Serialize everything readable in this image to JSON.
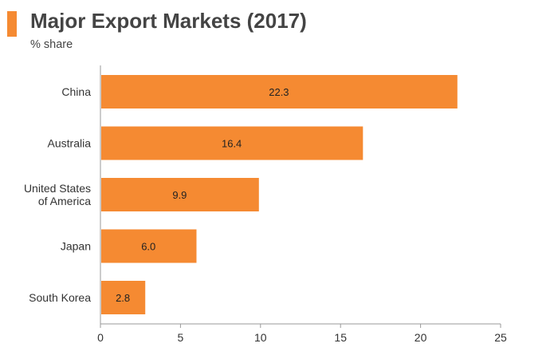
{
  "colors": {
    "accent": "#F58A32",
    "bar": "#F58A32",
    "axis": "#9a9a9a",
    "text": "#444444"
  },
  "header": {
    "title": "Major Export Markets (2017)",
    "subtitle": "% share"
  },
  "chart_data": {
    "type": "bar",
    "orientation": "horizontal",
    "title": "Major Export Markets (2017)",
    "subtitle": "% share",
    "categories": [
      [
        "China"
      ],
      [
        "Australia"
      ],
      [
        "United States",
        "of America"
      ],
      [
        "Japan"
      ],
      [
        "South Korea"
      ]
    ],
    "values": [
      22.3,
      16.4,
      9.9,
      6.0,
      2.8
    ],
    "value_labels": [
      "22.3",
      "16.4",
      "9.9",
      "6.0",
      "2.8"
    ],
    "xlim": [
      0,
      25
    ],
    "xticks": [
      0,
      5,
      10,
      15,
      20,
      25
    ],
    "xlabel": "",
    "ylabel": "",
    "grid": false,
    "legend": "none"
  }
}
